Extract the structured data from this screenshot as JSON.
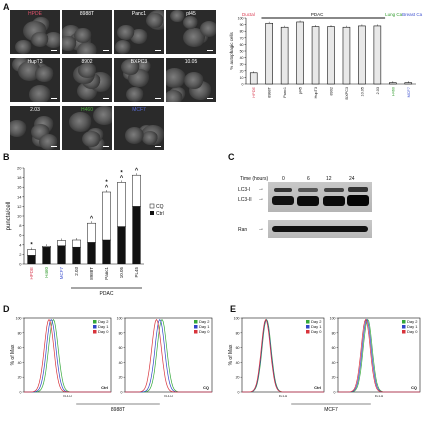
{
  "panels": {
    "A": "A",
    "B": "B",
    "C": "C",
    "D": "D",
    "E": "E"
  },
  "micrographs": [
    {
      "label": "HPDE",
      "color": "#e0506a"
    },
    {
      "label": "8988T",
      "color": "#ffffff"
    },
    {
      "label": "Panc1",
      "color": "#ffffff"
    },
    {
      "label": "pl45",
      "color": "#ffffff"
    },
    {
      "label": "HupT3",
      "color": "#ffffff"
    },
    {
      "label": "8902",
      "color": "#ffffff"
    },
    {
      "label": "BXPC3",
      "color": "#ffffff"
    },
    {
      "label": "10.05",
      "color": "#ffffff"
    },
    {
      "label": "2.03",
      "color": "#ffffff"
    },
    {
      "label": "H460",
      "color": "#4caa3c"
    },
    {
      "label": "MCF7",
      "color": "#5b6ed8"
    }
  ],
  "colors": {
    "ductal": "#d9394f",
    "lung": "#2e9a2a",
    "breast": "#3c4fcf",
    "tile_bg": "#2a2a2a"
  },
  "chart_data": [
    {
      "type": "bar",
      "categories": [
        "HPDE",
        "8988T",
        "Panc1",
        "pl45",
        "HupT3",
        "8902",
        "BXPC3",
        "10.05",
        "2.03",
        "H460",
        "MCF7"
      ],
      "values": [
        17,
        92,
        86,
        94,
        87,
        87,
        86,
        88,
        88,
        2,
        2
      ],
      "ylabel": "% autophagic cells",
      "ylim": [
        0,
        100
      ],
      "yticks": [
        0,
        10,
        20,
        30,
        40,
        50,
        60,
        70,
        80,
        90,
        100
      ],
      "groups": [
        {
          "name": "Ductal",
          "color": "#d9394f"
        },
        {
          "name": "PDAC",
          "color": "#111111"
        },
        {
          "name": "Lung Ca",
          "color": "#2e9a2a"
        },
        {
          "name": "Breast Ca",
          "color": "#3c4fcf"
        }
      ],
      "label_colors": [
        "#d9394f",
        "#111",
        "#111",
        "#111",
        "#111",
        "#111",
        "#111",
        "#111",
        "#111",
        "#2e9a2a",
        "#3c4fcf"
      ]
    },
    {
      "type": "bar",
      "stacked": true,
      "categories": [
        "HPDE",
        "H460",
        "MCF7",
        "2.03",
        "8988T",
        "Panc1",
        "10.05",
        "PL45"
      ],
      "label_colors": [
        "#d9394f",
        "#2e9a2a",
        "#3c4fcf",
        "#111",
        "#111",
        "#111",
        "#111",
        "#111"
      ],
      "series": [
        {
          "name": "Ctrl",
          "values": [
            1.8,
            3.5,
            3.8,
            3.5,
            4.5,
            5.0,
            7.8,
            12.0
          ]
        },
        {
          "name": "CQ",
          "values": [
            1.2,
            0.2,
            1.1,
            1.5,
            4.0,
            10.0,
            9.2,
            6.5
          ]
        }
      ],
      "markers": [
        "*",
        "",
        "",
        "",
        "^",
        "^*",
        "^*",
        "^"
      ],
      "ylabel": "puncta/cell",
      "ylim": [
        0,
        20
      ],
      "yticks": [
        0,
        2,
        4,
        6,
        8,
        10,
        12,
        14,
        16,
        18,
        20
      ],
      "group_label": "PDAC"
    },
    {
      "type": "line",
      "title": "8988T",
      "xlabel": "FL1-H",
      "ylabel": "% of Max",
      "panels": [
        "Ctrl",
        "CQ"
      ],
      "series": [
        {
          "name": "Day 2",
          "color": "#35a83a",
          "ctrl_peak": 1.35,
          "cq_peak": 1.7
        },
        {
          "name": "Day 1",
          "color": "#3045c8",
          "ctrl_peak": 1.25,
          "cq_peak": 1.6
        },
        {
          "name": "Day 0",
          "color": "#d8333b",
          "ctrl_peak": 1.15,
          "cq_peak": 1.45
        }
      ],
      "ylim": [
        0,
        100
      ],
      "yticks": [
        0,
        20,
        40,
        60,
        80,
        100
      ]
    },
    {
      "type": "line",
      "title": "MCF7",
      "xlabel": "FL1-H",
      "ylabel": "% of Max",
      "panels": [
        "Ctrl",
        "CQ"
      ],
      "series": [
        {
          "name": "Day 2",
          "color": "#35a83a",
          "ctrl_peak": 1.2,
          "cq_peak": 1.45
        },
        {
          "name": "Day 1",
          "color": "#3045c8",
          "ctrl_peak": 1.18,
          "cq_peak": 1.4
        },
        {
          "name": "Day 0",
          "color": "#d8333b",
          "ctrl_peak": 1.16,
          "cq_peak": 1.35
        }
      ],
      "ylim": [
        0,
        100
      ],
      "yticks": [
        0,
        20,
        40,
        60,
        80,
        100
      ]
    }
  ],
  "blot": {
    "time_label": "Time (hours)",
    "timepoints": [
      "0",
      "6",
      "12",
      "24"
    ],
    "rows": [
      "LC3-I",
      "LC3-II",
      "Ran"
    ]
  },
  "legend_B": {
    "cq": "CQ",
    "ctrl": "Ctrl"
  }
}
